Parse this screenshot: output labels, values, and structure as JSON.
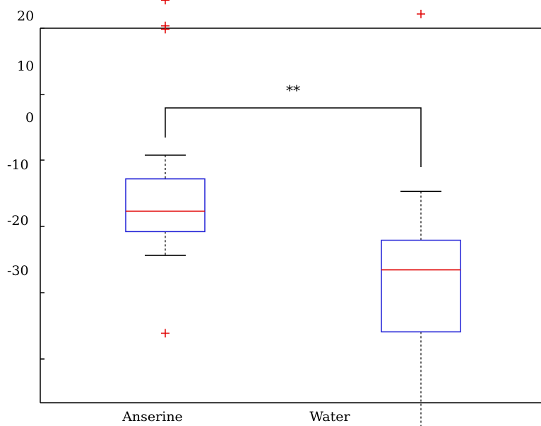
{
  "chart_data": {
    "type": "box",
    "categories": [
      "Anserine",
      "Water"
    ],
    "y_tick_labels": [
      "20",
      "10",
      "0",
      "-10",
      "-20",
      "-30"
    ],
    "boxes": [
      {
        "category": "Anserine",
        "whisker_low": -24.5,
        "q1": -20.9,
        "median": -17.8,
        "q3": -12.9,
        "whisker_high": -9.3,
        "outliers": [
          14.2,
          10.3,
          9.8,
          -36.3
        ]
      },
      {
        "category": "Water",
        "whisker_low": -50.5,
        "q1": -36.1,
        "median": -26.7,
        "q3": -22.2,
        "whisker_high": -14.8,
        "outliers": [
          12.1
        ]
      }
    ],
    "significance": {
      "label": "**",
      "between": [
        "Anserine",
        "Water"
      ]
    },
    "colors": {
      "box": "#1f1fd6",
      "median": "#e00000",
      "outlier": "#e00000",
      "whisker": "#000000"
    }
  }
}
